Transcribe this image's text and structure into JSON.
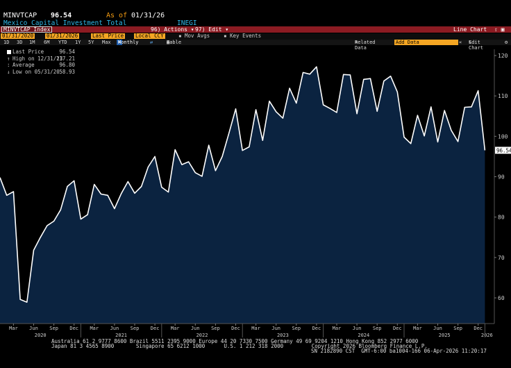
{
  "header": {
    "ticker": "MINVTCAP",
    "price": "96.54",
    "as_of_label": "As of",
    "as_of_date": "01/31/26",
    "description": "Mexico Capital Investment Total",
    "source": "INEGI"
  },
  "toolbar": {
    "index_label": "MINVTCAP Index",
    "actions_label": "96) Actions ▾",
    "edit_label": "97) Edit ▾",
    "chart_type": "Line Chart",
    "start_date": "01/31/2020",
    "end_date": "01/31/2026",
    "last_price_btn": "Last Price",
    "currency_btn": "Local CCY",
    "mov_avgs": "Mov Avgs",
    "key_events": "Key Events",
    "periods": [
      "1D",
      "3D",
      "1M",
      "6M",
      "YTD",
      "1Y",
      "5Y",
      "Max"
    ],
    "frequency": "Monthly",
    "table_label": "Table",
    "related_data": "Related Data",
    "add_data": "Add Data",
    "edit_chart": "Edit Chart"
  },
  "legend": {
    "items": [
      {
        "label": "Last Price",
        "value": "96.54"
      },
      {
        "label": "High on 12/31/23",
        "value": "117.21"
      },
      {
        "label": "Average",
        "value": "96.80"
      },
      {
        "label": "Low on 05/31/20",
        "value": "58.93"
      }
    ]
  },
  "footer": {
    "line1": "Australia 61 2 9777 8600 Brazil 5511 2395 9000 Europe 44 20 7330 7500 Germany 49 69 9204 1210 Hong Kong 852 2977 6000",
    "line2": "Japan 81 3 4565 8900       Singapore 65 6212 1000      U.S. 1 212 318 2000         Copyright 2026 Bloomberg Finance L.P.",
    "line3": "SN 2182890 CST  GMT-6:00 ba1004-166 06-Apr-2026 11:20:17"
  },
  "colors": {
    "fill": "#0b2340",
    "line": "#ffffff",
    "accent": "#f5a623",
    "header_red": "#8c1b22",
    "title_blue": "#2fb8e8"
  },
  "chart_data": {
    "type": "area",
    "frequency": "monthly",
    "start": "2020-01",
    "last_value_label": "96.54",
    "ylim": [
      54.5,
      123
    ],
    "yticks": [
      60,
      70,
      80,
      90,
      100,
      110,
      120
    ],
    "x_month_labels": [
      "Mar",
      "Jun",
      "Sep",
      "Dec",
      "Mar",
      "Jun",
      "Sep",
      "Dec",
      "Mar",
      "Jun",
      "Sep",
      "Dec",
      "Mar",
      "Jun",
      "Sep",
      "Dec",
      "Mar",
      "Jun",
      "Sep",
      "Dec",
      "Mar",
      "Jun",
      "Sep",
      "Dec"
    ],
    "x_year_labels": [
      "2020",
      "2021",
      "2022",
      "2023",
      "2024",
      "2025",
      "2026"
    ],
    "values": [
      89.8,
      85.4,
      86.3,
      59.6,
      58.93,
      71.8,
      75.0,
      77.9,
      79.0,
      81.8,
      87.6,
      89.0,
      79.5,
      80.6,
      88.1,
      85.7,
      85.4,
      82.1,
      85.8,
      88.8,
      85.9,
      87.6,
      92.4,
      95.0,
      87.4,
      86.2,
      96.7,
      93.0,
      93.7,
      91.0,
      90.1,
      97.8,
      91.5,
      95.0,
      100.8,
      106.8,
      96.5,
      97.4,
      106.6,
      99.0,
      108.7,
      106.1,
      104.5,
      111.9,
      108.2,
      115.8,
      115.4,
      117.21,
      107.8,
      106.9,
      105.9,
      115.3,
      115.2,
      105.6,
      114.1,
      114.3,
      106.2,
      113.7,
      114.9,
      111.0,
      99.8,
      98.2,
      105.2,
      100.1,
      107.3,
      98.6,
      106.4,
      101.5,
      98.7,
      107.2,
      107.3,
      111.3,
      96.54
    ]
  }
}
